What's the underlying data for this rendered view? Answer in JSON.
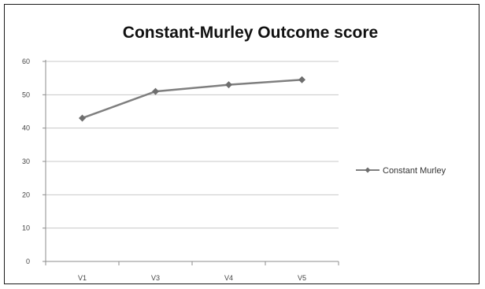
{
  "chart_data": {
    "type": "line",
    "title": "Constant-Murley Outcome score",
    "categories": [
      "V1",
      "V3",
      "V4",
      "V5"
    ],
    "series": [
      {
        "name": "Constant Murley",
        "values": [
          43,
          51,
          53,
          54.5
        ]
      }
    ],
    "ylim": [
      0,
      60
    ],
    "yticks": [
      "0",
      "10",
      "20",
      "30",
      "40",
      "50",
      "60"
    ],
    "grid": true,
    "legend": "right",
    "colors": {
      "line": "#7f7f7f",
      "marker": "#6e6e6e",
      "grid": "#c8c8c8",
      "axis": "#8c8c8c"
    }
  }
}
